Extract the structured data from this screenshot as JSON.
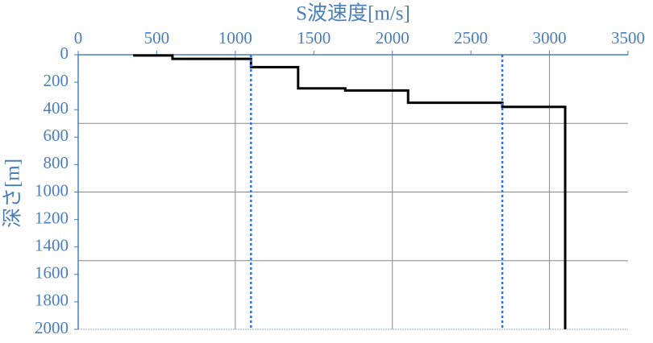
{
  "chart_data": {
    "type": "line",
    "x_label": "S波速度[m/s]",
    "y_label": "深さ[m]",
    "xlim": [
      0,
      3500
    ],
    "xticks": [
      0,
      500,
      1000,
      1500,
      2000,
      2500,
      3000,
      3500
    ],
    "ylim": [
      0,
      2000
    ],
    "yticks": [
      0,
      200,
      400,
      600,
      800,
      1000,
      1200,
      1400,
      1600,
      1800,
      2000
    ],
    "y_inverted": true,
    "x_axis_position": "top",
    "xgrid": [
      1000,
      2000,
      3000
    ],
    "ygrid": [
      500,
      1000,
      1500
    ],
    "series": [
      {
        "color": "#000000",
        "dashed": false,
        "x": [
          350,
          600,
          600,
          1100,
          1100,
          1400,
          1400,
          1700,
          1700,
          2100,
          2100,
          2700,
          2700,
          3100,
          3100
        ],
        "y": [
          5,
          5,
          30,
          30,
          90,
          90,
          245,
          245,
          260,
          260,
          350,
          350,
          380,
          380,
          2000
        ]
      },
      {
        "color": "#3a6fd8",
        "dashed": true,
        "x": [
          1100,
          1100
        ],
        "y": [
          0,
          2000
        ]
      },
      {
        "color": "#3a6fd8",
        "dashed": true,
        "x": [
          2700,
          2700
        ],
        "y": [
          0,
          2000
        ]
      }
    ]
  }
}
